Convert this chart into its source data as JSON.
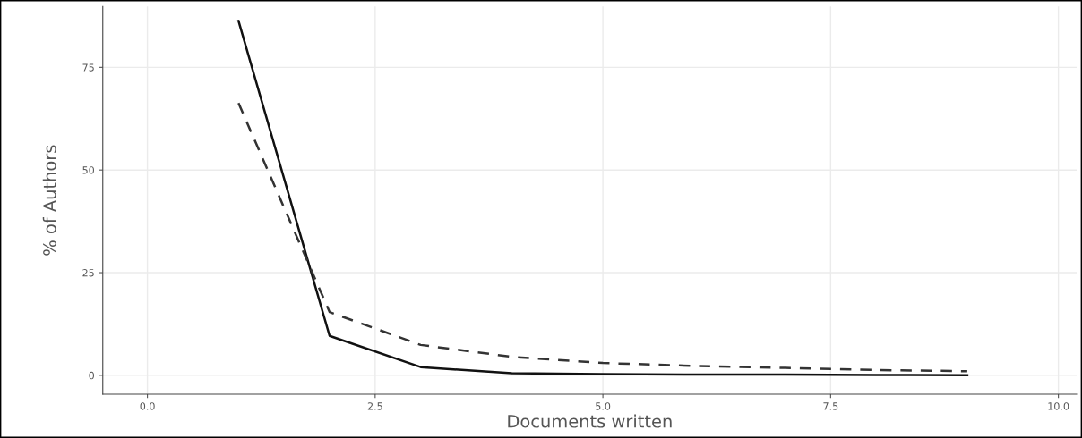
{
  "chart_data": {
    "type": "line",
    "xlabel": "Documents written",
    "ylabel": "% of Authors",
    "xlim": [
      -0.49,
      10.2
    ],
    "xticks": [
      {
        "value": 0,
        "label": "0.0"
      },
      {
        "value": 2.5,
        "label": "2.5"
      },
      {
        "value": 5,
        "label": "5.0"
      },
      {
        "value": 7.5,
        "label": "7.5"
      },
      {
        "value": 10,
        "label": "10.0"
      }
    ],
    "ylim": [
      -4.6,
      89.8
    ],
    "yticks": [
      0,
      25,
      50,
      75
    ],
    "grid": true,
    "x": [
      1,
      2,
      3,
      4,
      5,
      6,
      7,
      8,
      9
    ],
    "series": [
      {
        "color": "#111111",
        "line_style": "solid",
        "values": [
          86.3,
          9.6,
          2.0,
          0.5,
          0.3,
          0.2,
          0.2,
          0.1,
          0.0
        ]
      },
      {
        "color": "#333333",
        "line_style": "dashed",
        "values": [
          66.3,
          15.4,
          7.4,
          4.5,
          3.0,
          2.3,
          1.8,
          1.3,
          1.0
        ]
      }
    ]
  }
}
